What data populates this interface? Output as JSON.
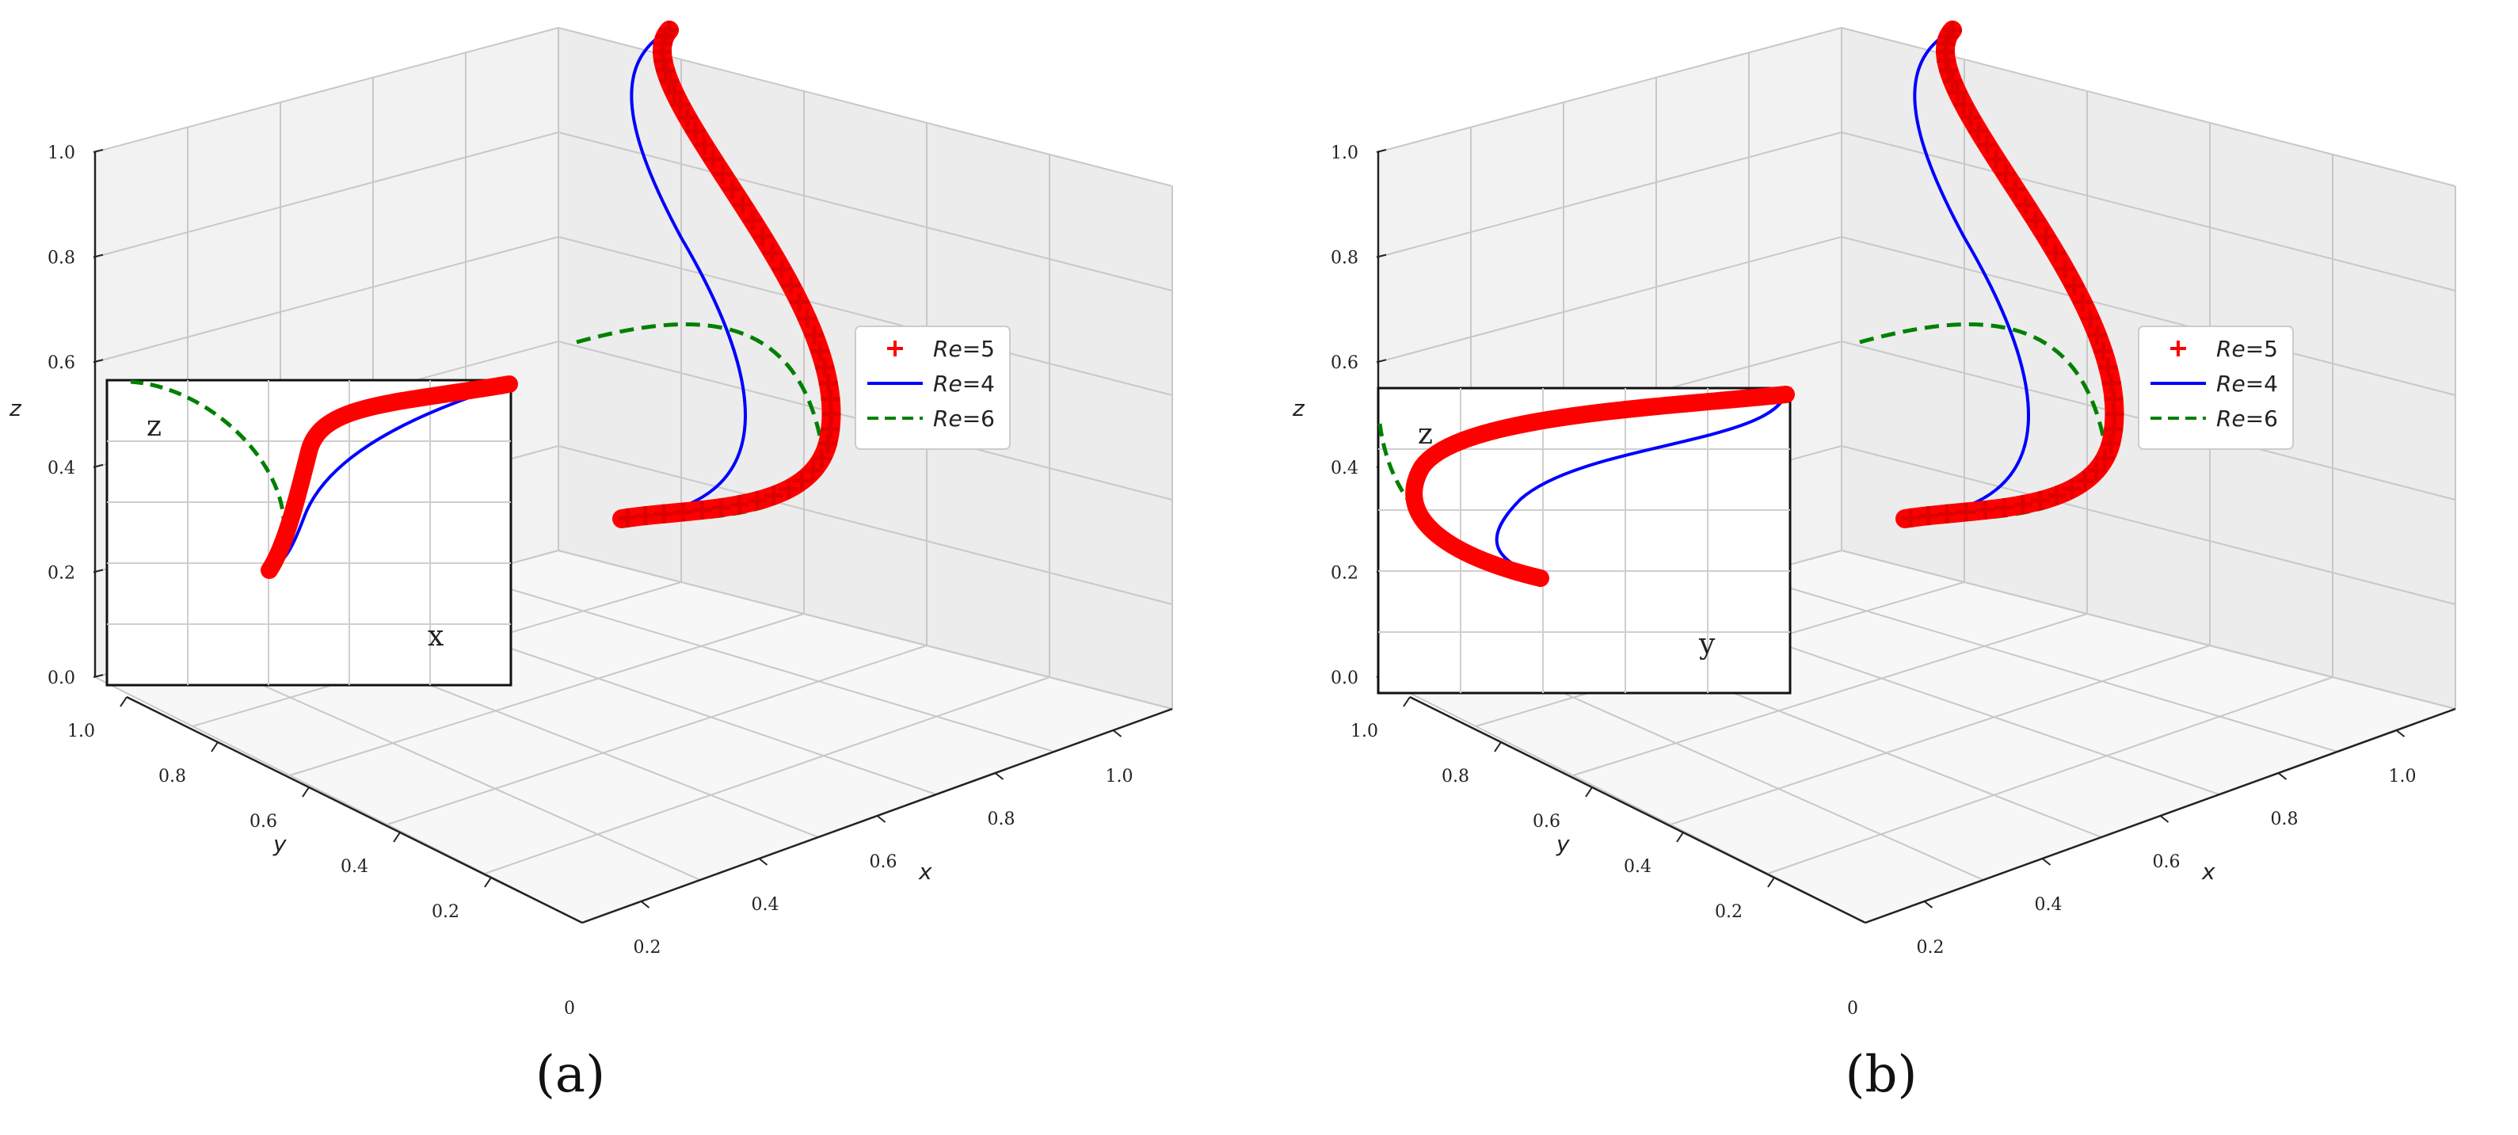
{
  "captions": [
    "(a)",
    "(b)"
  ],
  "colors": {
    "re5": "#ff0000",
    "re4": "#0000ff",
    "re6": "#008000"
  },
  "chart_data": [
    {
      "type": "line",
      "panel": "a",
      "xlabel": "x",
      "ylabel": "y",
      "zlabel": "z",
      "xlim": [
        0,
        1
      ],
      "ylim": [
        0,
        1
      ],
      "zlim": [
        0,
        1
      ],
      "z_ticks": [
        "0.0",
        "0.2",
        "0.4",
        "0.6",
        "0.8",
        "1.0"
      ],
      "y_ticks": [
        "0.2",
        "0.4",
        "0.6",
        "0.8",
        "1.0"
      ],
      "x_ticks": [
        "0.2",
        "0.4",
        "0.6",
        "0.8",
        "1.0"
      ],
      "origin_label": "0",
      "grid": true,
      "legend": {
        "placement": "right",
        "entries": [
          {
            "name": "Re",
            "suffix": "=5",
            "marker": "+",
            "style": "marker"
          },
          {
            "name": "Re",
            "suffix": "=4",
            "style": "solid"
          },
          {
            "name": "Re",
            "suffix": "=6",
            "style": "dashed"
          }
        ]
      },
      "inset": {
        "x_label": "x",
        "z_label": "z",
        "view": "x-z projection"
      }
    },
    {
      "type": "line",
      "panel": "b",
      "xlabel": "x",
      "ylabel": "y",
      "zlabel": "z",
      "xlim": [
        0,
        1
      ],
      "ylim": [
        0,
        1
      ],
      "zlim": [
        0,
        1
      ],
      "z_ticks": [
        "0.0",
        "0.2",
        "0.4",
        "0.6",
        "0.8",
        "1.0"
      ],
      "y_ticks": [
        "0.2",
        "0.4",
        "0.6",
        "0.8",
        "1.0"
      ],
      "x_ticks": [
        "0.2",
        "0.4",
        "0.6",
        "0.8",
        "1.0"
      ],
      "origin_label": "0",
      "grid": true,
      "legend": {
        "placement": "right",
        "entries": [
          {
            "name": "Re",
            "suffix": "=5",
            "marker": "+",
            "style": "marker"
          },
          {
            "name": "Re",
            "suffix": "=4",
            "style": "solid"
          },
          {
            "name": "Re",
            "suffix": "=6",
            "style": "dashed"
          }
        ]
      },
      "inset": {
        "x_label": "y",
        "z_label": "z",
        "view": "y-z projection"
      }
    }
  ]
}
